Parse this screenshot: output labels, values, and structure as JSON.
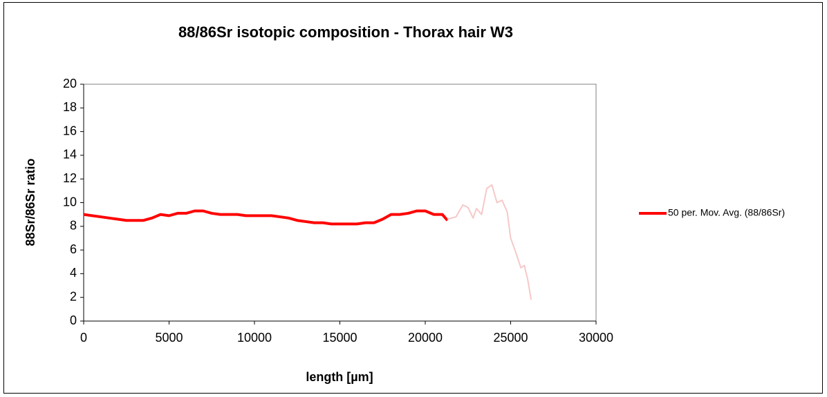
{
  "chart_data": {
    "type": "line",
    "title": "88/86Sr isotopic composition - Thorax hair W3",
    "x_label": "length [µm]",
    "y_label": "88Sr/86Sr ratio",
    "xlim": [
      0,
      30000
    ],
    "xticks": [
      0,
      5000,
      10000,
      15000,
      20000,
      25000,
      30000
    ],
    "ylim": [
      0,
      20
    ],
    "yticks": [
      0,
      2,
      4,
      6,
      8,
      10,
      12,
      14,
      16,
      18,
      20
    ],
    "grid": false,
    "legend": "right",
    "series": [
      {
        "name": "50 per. Mov. Avg. (88/86Sr)",
        "color": "#ff0000",
        "x": [
          0,
          500,
          1000,
          1500,
          2000,
          2500,
          3000,
          3500,
          4000,
          4500,
          5000,
          5500,
          6000,
          6500,
          7000,
          7500,
          8000,
          8500,
          9000,
          9500,
          10000,
          10500,
          11000,
          11500,
          12000,
          12500,
          13000,
          13500,
          14000,
          14500,
          15000,
          15500,
          16000,
          16500,
          17000,
          17500,
          18000,
          18500,
          19000,
          19500,
          20000,
          20500,
          21000,
          21300
        ],
        "values": [
          9.0,
          8.9,
          8.8,
          8.7,
          8.6,
          8.5,
          8.5,
          8.5,
          8.7,
          9.0,
          8.9,
          9.1,
          9.1,
          9.3,
          9.3,
          9.1,
          9.0,
          9.0,
          9.0,
          8.9,
          8.9,
          8.9,
          8.9,
          8.8,
          8.7,
          8.5,
          8.4,
          8.3,
          8.3,
          8.2,
          8.2,
          8.2,
          8.2,
          8.3,
          8.3,
          8.6,
          9.0,
          9.0,
          9.1,
          9.3,
          9.3,
          9.0,
          9.0,
          8.5
        ]
      },
      {
        "color": "#f6c8c8",
        "x": [
          21300,
          21800,
          22200,
          22500,
          22800,
          23000,
          23300,
          23600,
          23900,
          24200,
          24500,
          24800,
          25000,
          25300,
          25600,
          25800,
          26000,
          26200
        ],
        "values": [
          8.6,
          8.8,
          9.8,
          9.6,
          8.7,
          9.5,
          9.0,
          11.2,
          11.5,
          10.0,
          10.2,
          9.2,
          7.0,
          5.8,
          4.5,
          4.7,
          3.5,
          1.8
        ]
      }
    ]
  }
}
